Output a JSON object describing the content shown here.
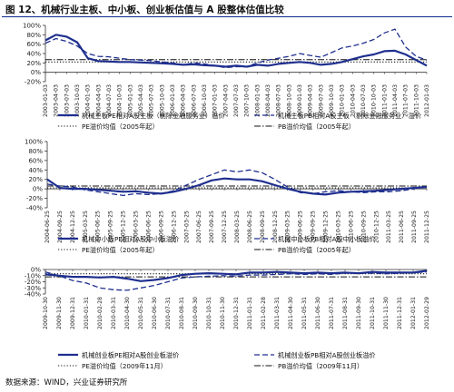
{
  "figure": {
    "title": "图 12、机械行业主板、中小板、创业板估值与 A 股整体估值比较",
    "source": "数据来源：WIND，兴业证券研究所"
  },
  "colors": {
    "series": "#1f2f8f",
    "ref": "#111111",
    "axis": "#333333"
  },
  "chart_data": [
    {
      "type": "line",
      "ylim": [
        -20,
        100
      ],
      "y_ticks": [
        "100%",
        "80%",
        "60%",
        "40%",
        "20%",
        "0%",
        "-20%"
      ],
      "x_ticks": [
        "2003-01-03",
        "2003-04-03",
        "2003-07-03",
        "2003-10-03",
        "2004-01-03",
        "2004-04-03",
        "2004-07-03",
        "2004-10-03",
        "2005-01-03",
        "2005-04-03",
        "2005-07-03",
        "2005-10-03",
        "2006-01-03",
        "2006-04-03",
        "2006-07-03",
        "2006-10-03",
        "2007-01-03",
        "2007-04-03",
        "2007-07-03",
        "2007-10-03",
        "2008-01-03",
        "2008-04-03",
        "2008-07-03",
        "2008-10-03",
        "2009-01-03",
        "2009-04-03",
        "2009-07-03",
        "2009-10-03",
        "2010-01-03",
        "2010-04-03",
        "2010-07-03",
        "2010-10-03",
        "2011-01-03",
        "2011-04-03",
        "2011-07-03",
        "2011-10-03",
        "2012-01-03"
      ],
      "series": [
        {
          "name": "机械主板PE相对A股主板（剔除金融服务业）溢价",
          "style": "solid",
          "values": [
            68,
            80,
            76,
            64,
            30,
            24,
            23,
            22,
            22,
            21,
            20,
            19,
            18,
            16,
            17,
            15,
            14,
            12,
            14,
            12,
            16,
            14,
            18,
            20,
            22,
            20,
            16,
            18,
            22,
            28,
            34,
            38,
            45,
            46,
            38,
            26,
            14
          ]
        },
        {
          "name": "机械主板PB相对A股主板（剔除金融服务业）溢价",
          "style": "dash",
          "values": [
            62,
            72,
            66,
            56,
            40,
            34,
            33,
            30,
            27,
            26,
            25,
            22,
            20,
            16,
            20,
            18,
            14,
            10,
            12,
            12,
            20,
            26,
            30,
            34,
            40,
            36,
            32,
            42,
            52,
            56,
            62,
            70,
            84,
            92,
            54,
            34,
            26
          ]
        },
        {
          "name": "PE溢价均值（2005年起）",
          "style": "dot",
          "values": [
            22,
            22,
            22,
            22,
            22,
            22,
            22,
            22,
            22,
            22,
            22,
            22,
            22,
            22,
            22,
            22,
            22,
            22,
            22,
            22,
            22,
            22,
            22,
            22,
            22,
            22,
            22,
            22,
            22,
            22,
            22,
            22,
            22,
            22,
            22,
            22,
            22
          ]
        },
        {
          "name": "PB溢价均值（2005年起）",
          "style": "dash-dot",
          "values": [
            27,
            27,
            27,
            27,
            27,
            27,
            27,
            27,
            27,
            27,
            27,
            27,
            27,
            27,
            27,
            27,
            27,
            27,
            27,
            27,
            27,
            27,
            27,
            27,
            27,
            27,
            27,
            27,
            27,
            27,
            27,
            27,
            27,
            27,
            27,
            27,
            27
          ]
        }
      ]
    },
    {
      "type": "line",
      "ylim": [
        -40,
        100
      ],
      "y_ticks": [
        "100%",
        "80%",
        "60%",
        "40%",
        "20%",
        "0%",
        "-20%",
        "-40%"
      ],
      "x_ticks": [
        "2004-06-25",
        "2004-09-25",
        "2004-12-25",
        "2005-03-25",
        "2005-06-25",
        "2005-09-25",
        "2005-12-25",
        "2006-03-25",
        "2006-06-25",
        "2006-09-25",
        "2006-12-25",
        "2007-03-25",
        "2007-06-25",
        "2007-09-25",
        "2007-12-25",
        "2008-03-25",
        "2008-06-25",
        "2008-09-25",
        "2008-12-25",
        "2009-03-25",
        "2009-06-25",
        "2009-09-25",
        "2009-12-25",
        "2010-03-25",
        "2010-06-25",
        "2010-09-25",
        "2010-12-25",
        "2011-03-25",
        "2011-06-25",
        "2011-09-25",
        "2011-12-25"
      ],
      "series": [
        {
          "name": "机械中小板PE相对A股中小板溢价",
          "style": "solid",
          "values": [
            20,
            2,
            0,
            0,
            -2,
            -4,
            -6,
            -5,
            -8,
            -10,
            -6,
            0,
            8,
            18,
            22,
            20,
            20,
            16,
            8,
            0,
            -6,
            -10,
            -12,
            -8,
            -6,
            -5,
            -4,
            -2,
            0,
            2,
            4
          ]
        },
        {
          "name": "机械中小板PB相对A股中小板溢价",
          "style": "dash",
          "values": [
            10,
            6,
            4,
            -2,
            -6,
            -10,
            -14,
            -10,
            -12,
            -10,
            -4,
            8,
            20,
            30,
            40,
            36,
            40,
            34,
            20,
            4,
            -8,
            -10,
            -6,
            -4,
            -6,
            -8,
            -6,
            -6,
            -4,
            0,
            6
          ]
        },
        {
          "name": "PE溢价均值（2005年起）",
          "style": "dot",
          "values": [
            2,
            2,
            2,
            2,
            2,
            2,
            2,
            2,
            2,
            2,
            2,
            2,
            2,
            2,
            2,
            2,
            2,
            2,
            2,
            2,
            2,
            2,
            2,
            2,
            2,
            2,
            2,
            2,
            2,
            2,
            2
          ]
        },
        {
          "name": "PB溢价均值（2005年起）",
          "style": "dash-dot",
          "values": [
            6,
            6,
            6,
            6,
            6,
            6,
            6,
            6,
            6,
            6,
            6,
            6,
            6,
            6,
            6,
            6,
            6,
            6,
            6,
            6,
            6,
            6,
            6,
            6,
            6,
            6,
            6,
            6,
            6,
            6,
            6
          ]
        }
      ]
    },
    {
      "type": "line",
      "ylim": [
        -40,
        0
      ],
      "y_ticks": [
        "0%",
        "-10%",
        "-20%",
        "-30%",
        "-40%"
      ],
      "x_ticks": [
        "2009-10-30",
        "2009-11-30",
        "2009-12-31",
        "2010-01-31",
        "2010-02-28",
        "2010-03-31",
        "2010-04-30",
        "2010-05-31",
        "2010-06-30",
        "2010-07-31",
        "2010-08-31",
        "2010-09-30",
        "2010-10-31",
        "2010-11-30",
        "2010-12-31",
        "2011-01-31",
        "2011-02-28",
        "2011-03-31",
        "2011-04-30",
        "2011-05-31",
        "2011-06-30",
        "2011-07-31",
        "2011-08-31",
        "2011-09-30",
        "2011-10-31",
        "2011-11-30",
        "2011-12-31",
        "2012-01-31",
        "2012-02-29"
      ],
      "series": [
        {
          "name": "机械创业板PE相对A股创业板溢价",
          "style": "solid",
          "values": [
            -8,
            -10,
            -12,
            -12,
            -13,
            -12,
            -15,
            -19,
            -17,
            -14,
            -9,
            -7,
            -6,
            -7,
            -8,
            -5,
            -5,
            -4,
            -5,
            -6,
            -5,
            -6,
            -5,
            -6,
            -4,
            -5,
            -5,
            -5,
            -2
          ]
        },
        {
          "name": "机械创业板PB相对A股创业板溢价",
          "style": "dash",
          "values": [
            -4,
            -10,
            -18,
            -22,
            -30,
            -33,
            -34,
            -30,
            -26,
            -20,
            -14,
            -12,
            -11,
            -10,
            -11,
            -9,
            -9,
            -8,
            -7,
            -8,
            -7,
            -8,
            -6,
            -6,
            -6,
            -7,
            -6,
            -5,
            -4
          ]
        },
        {
          "name": "PE溢价均值（2009年11月）",
          "style": "dot",
          "values": [
            -7,
            -7,
            -7,
            -7,
            -7,
            -7,
            -7,
            -7,
            -7,
            -7,
            -7,
            -7,
            -7,
            -7,
            -7,
            -7,
            -7,
            -7,
            -7,
            -7,
            -7,
            -7,
            -7,
            -7,
            -7,
            -7,
            -7,
            -7,
            -7
          ]
        },
        {
          "name": "PB溢价均值（2009年11月）",
          "style": "dash-dot",
          "values": [
            -12,
            -12,
            -12,
            -12,
            -12,
            -12,
            -12,
            -12,
            -12,
            -12,
            -12,
            -12,
            -12,
            -12,
            -12,
            -12,
            -12,
            -12,
            -12,
            -12,
            -12,
            -12,
            -12,
            -12,
            -12,
            -12,
            -12,
            -12,
            -12
          ]
        }
      ]
    }
  ]
}
